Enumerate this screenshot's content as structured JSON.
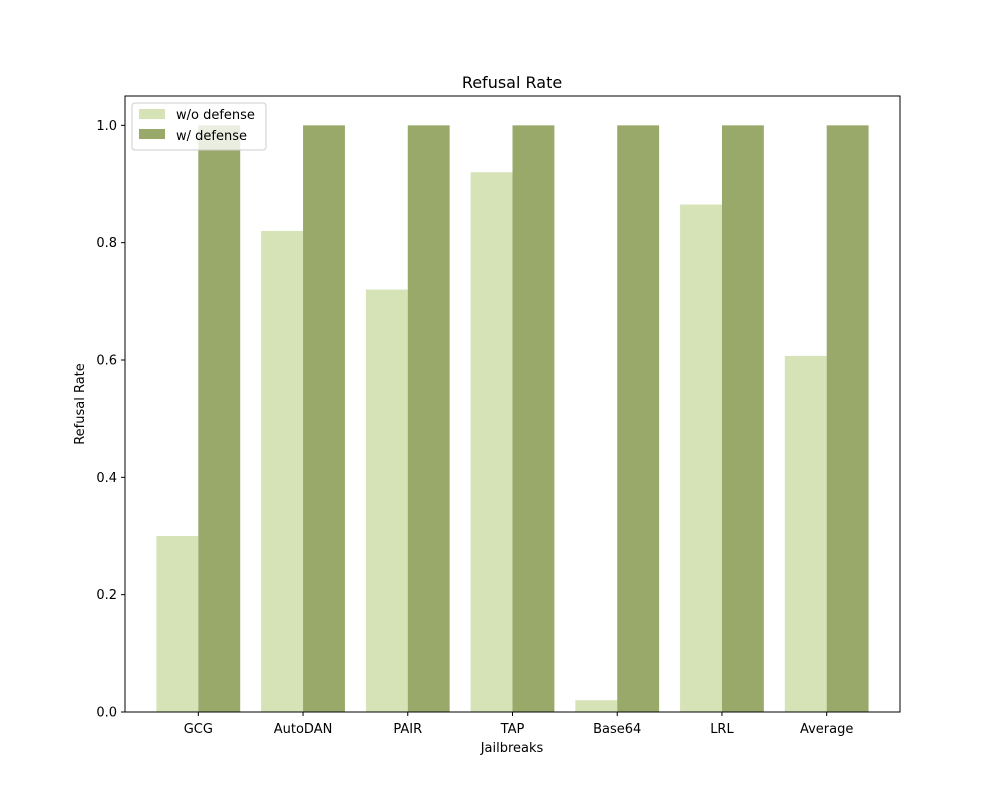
{
  "chart_data": {
    "type": "bar",
    "title": "Refusal Rate",
    "xlabel": "Jailbreaks",
    "ylabel": "Refusal Rate",
    "categories": [
      "GCG",
      "AutoDAN",
      "PAIR",
      "TAP",
      "Base64",
      "LRL",
      "Average"
    ],
    "series": [
      {
        "name": "w/o defense",
        "color": "#d6e3b7",
        "values": [
          0.3,
          0.82,
          0.72,
          0.92,
          0.02,
          0.865,
          0.607
        ]
      },
      {
        "name": "w/ defense",
        "color": "#98a96a",
        "values": [
          1.0,
          1.0,
          1.0,
          1.0,
          1.0,
          1.0,
          1.0
        ]
      }
    ],
    "ylim": [
      0,
      1.05
    ],
    "yticks": [
      "0.0",
      "0.2",
      "0.4",
      "0.6",
      "0.8",
      "1.0"
    ],
    "grid": false,
    "legend_position": "top-left"
  }
}
